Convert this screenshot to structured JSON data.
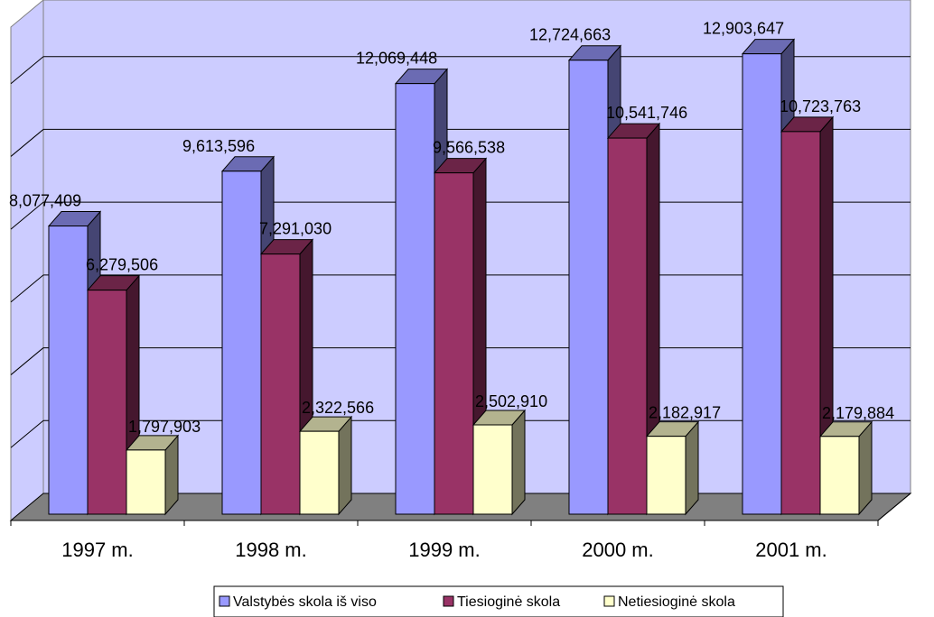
{
  "chart_data": {
    "type": "bar",
    "style": "3d-clustered-column",
    "categories": [
      "1997 m.",
      "1998 m.",
      "1999 m.",
      "2000 m.",
      "2001 m."
    ],
    "series": [
      {
        "name": "Valstybės skola iš viso",
        "color": "#9999ff",
        "values": [
          8077409,
          9613596,
          12069448,
          12724663,
          12903647
        ],
        "labels": [
          "8,077,409",
          "9,613,596",
          "12,069,448",
          "12,724,663",
          "12,903,647"
        ]
      },
      {
        "name": "Tiesioginė skola",
        "color": "#993366",
        "values": [
          6279506,
          7291030,
          9566538,
          10541746,
          10723763
        ],
        "labels": [
          "6,279,506",
          "7,291,030",
          "9,566,538",
          "10,541,746",
          "10,723,763"
        ]
      },
      {
        "name": "Netiesioginė skola",
        "color": "#ffffcc",
        "values": [
          1797903,
          2322566,
          2502910,
          2182917,
          2179884
        ],
        "labels": [
          "1,797,903",
          "2,322,566",
          "2,502,910",
          "2,182,917",
          "2,179,884"
        ]
      }
    ],
    "ylim": [
      0,
      14000000
    ],
    "grid": true,
    "legend_position": "bottom",
    "wall_color": "#ccccff",
    "floor_color": "#808080"
  }
}
